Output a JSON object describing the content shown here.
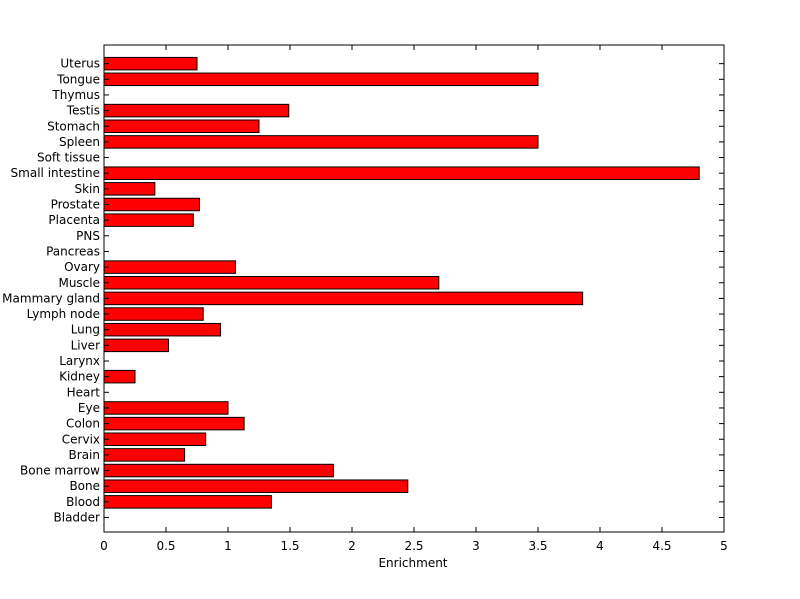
{
  "chart_data": {
    "type": "bar",
    "orientation": "horizontal",
    "title": "",
    "xlabel": "Enrichment",
    "ylabel": "",
    "xlim": [
      0,
      5
    ],
    "xticks": [
      0,
      0.5,
      1,
      1.5,
      2,
      2.5,
      3,
      3.5,
      4,
      4.5,
      5
    ],
    "xtick_labels": [
      "0",
      "0.5",
      "1",
      "1.5",
      "2",
      "2.5",
      "3",
      "3.5",
      "4",
      "4.5",
      "5"
    ],
    "grid": false,
    "bar_color": "#ff0000",
    "bar_edge_color": "#000000",
    "categories": [
      "Bladder",
      "Blood",
      "Bone",
      "Bone marrow",
      "Brain",
      "Cervix",
      "Colon",
      "Eye",
      "Heart",
      "Kidney",
      "Larynx",
      "Liver",
      "Lung",
      "Lymph node",
      "Mammary gland",
      "Muscle",
      "Ovary",
      "Pancreas",
      "PNS",
      "Placenta",
      "Prostate",
      "Skin",
      "Small intestine",
      "Soft tissue",
      "Spleen",
      "Stomach",
      "Testis",
      "Thymus",
      "Tongue",
      "Uterus"
    ],
    "values": [
      0,
      1.35,
      2.45,
      1.85,
      0.65,
      0.82,
      1.13,
      1.0,
      0,
      0.25,
      0,
      0.52,
      0.94,
      0.8,
      3.86,
      2.7,
      1.06,
      0,
      0,
      0.72,
      0.77,
      0.41,
      4.8,
      0,
      3.5,
      1.25,
      1.49,
      0,
      3.5,
      0.75
    ]
  }
}
